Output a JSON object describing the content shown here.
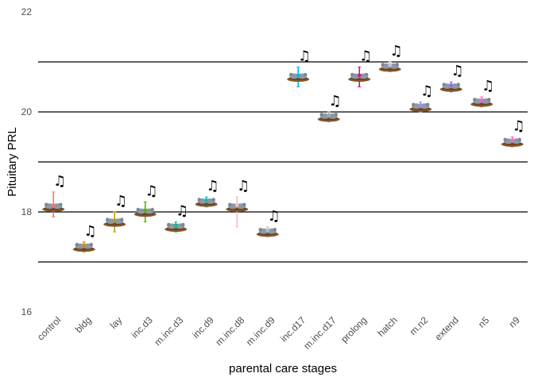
{
  "chart_data": {
    "type": "scatter",
    "title": "",
    "xlabel": "parental care stages",
    "ylabel": "Pituitary PRL",
    "ylim": [
      16,
      22
    ],
    "y_ticks": [
      16,
      18,
      20,
      22
    ],
    "hlines": [
      17,
      18,
      19,
      20,
      21
    ],
    "grid": false,
    "legend": "none",
    "marker_icons": {
      "point": "bird-nest-icon",
      "label": "music-notes-icon"
    },
    "categories": [
      "control",
      "bldg",
      "lay",
      "inc.d3",
      "m.inc.d3",
      "inc.d9",
      "m.inc.d8",
      "m.inc.d9",
      "inc.d17",
      "m.inc.d17",
      "prolong",
      "hatch",
      "m.n2",
      "extend",
      "n5",
      "n9"
    ],
    "values": [
      18.1,
      17.3,
      17.8,
      18.0,
      17.7,
      18.2,
      18.1,
      17.6,
      20.7,
      19.9,
      20.7,
      20.9,
      20.1,
      20.5,
      20.2,
      19.4
    ],
    "err_low": [
      17.9,
      17.2,
      17.6,
      17.8,
      17.6,
      18.1,
      17.7,
      17.5,
      20.5,
      19.8,
      20.5,
      20.8,
      20.0,
      20.4,
      20.1,
      19.3
    ],
    "err_high": [
      18.4,
      17.4,
      18.0,
      18.2,
      17.8,
      18.3,
      18.3,
      17.7,
      20.9,
      20.0,
      20.9,
      21.0,
      20.2,
      20.6,
      20.3,
      19.5
    ],
    "colors": [
      "#F8766D",
      "#E38900",
      "#C49A00",
      "#53B400",
      "#00C094",
      "#00BFC4",
      "#FFB6C1",
      "#C0C0C0",
      "#00B6EB",
      "#A9A9A9",
      "#C71585",
      "#D8BFD8",
      "#A58AFF",
      "#9370DB",
      "#FB61D7",
      "#FF66CC"
    ]
  }
}
